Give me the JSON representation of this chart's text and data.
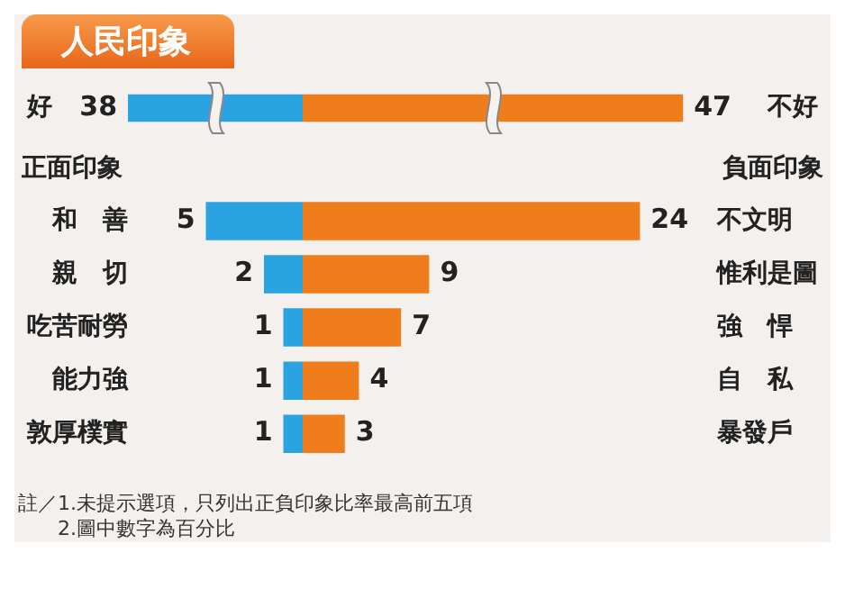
{
  "chart_data": [
    {
      "type": "bar",
      "orientation": "horizontal",
      "title": "人民印象",
      "categories": [
        "好"
      ],
      "tick_labels": "y",
      "data_labels": true,
      "series": [
        {
          "color": "#2aa3e0",
          "values": [
            38
          ]
        }
      ]
    },
    {
      "type": "bar",
      "orientation": "horizontal",
      "categories": [
        "不好"
      ],
      "tick_labels": "y",
      "data_labels": true,
      "series": [
        {
          "color": "#f07d1c",
          "values": [
            47
          ]
        }
      ]
    },
    {
      "type": "bar",
      "orientation": "horizontal",
      "ylabel": "正面印象",
      "categories": [
        "和　善",
        "親　切",
        "吃苦耐勞",
        "能力強",
        "敦厚樸實"
      ],
      "tick_labels": "y",
      "data_labels": true,
      "series": [
        {
          "color": "#2aa3e0",
          "values": [
            5,
            2,
            1,
            1,
            1
          ]
        }
      ],
      "annotations": [
        "註／1.未提示選項，只列出正負印象比率最高前五項",
        "　　2.圖中數字為百分比"
      ]
    },
    {
      "type": "bar",
      "orientation": "horizontal",
      "ylabel": "負面印象",
      "categories": [
        "不文明",
        "惟利是圖",
        "強　悍",
        "自　私",
        "暴發戶"
      ],
      "tick_labels": "y",
      "data_labels": true,
      "series": [
        {
          "color": "#f07d1c",
          "values": [
            24,
            9,
            7,
            4,
            3
          ]
        }
      ]
    }
  ]
}
